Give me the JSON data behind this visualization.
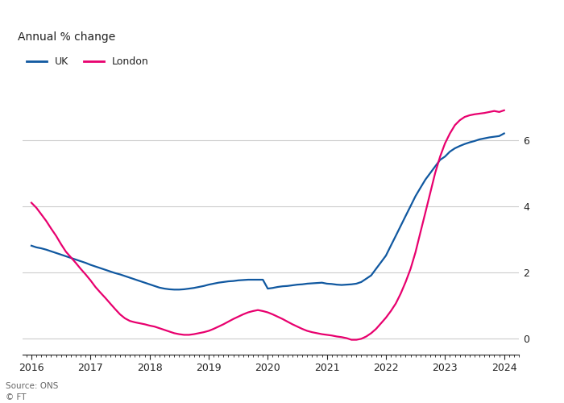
{
  "title": "Annual % change",
  "source_line1": "Source: ONS",
  "source_line2": "© FT",
  "uk_data": [
    [
      2016.0,
      2.8
    ],
    [
      2016.083,
      2.75
    ],
    [
      2016.167,
      2.72
    ],
    [
      2016.25,
      2.68
    ],
    [
      2016.333,
      2.63
    ],
    [
      2016.417,
      2.58
    ],
    [
      2016.5,
      2.53
    ],
    [
      2016.583,
      2.48
    ],
    [
      2016.667,
      2.43
    ],
    [
      2016.75,
      2.38
    ],
    [
      2016.833,
      2.33
    ],
    [
      2016.917,
      2.28
    ],
    [
      2017.0,
      2.22
    ],
    [
      2017.083,
      2.17
    ],
    [
      2017.167,
      2.12
    ],
    [
      2017.25,
      2.07
    ],
    [
      2017.333,
      2.02
    ],
    [
      2017.417,
      1.97
    ],
    [
      2017.5,
      1.93
    ],
    [
      2017.583,
      1.88
    ],
    [
      2017.667,
      1.83
    ],
    [
      2017.75,
      1.78
    ],
    [
      2017.833,
      1.73
    ],
    [
      2017.917,
      1.68
    ],
    [
      2018.0,
      1.63
    ],
    [
      2018.083,
      1.58
    ],
    [
      2018.167,
      1.53
    ],
    [
      2018.25,
      1.5
    ],
    [
      2018.333,
      1.48
    ],
    [
      2018.417,
      1.47
    ],
    [
      2018.5,
      1.47
    ],
    [
      2018.583,
      1.48
    ],
    [
      2018.667,
      1.5
    ],
    [
      2018.75,
      1.52
    ],
    [
      2018.833,
      1.55
    ],
    [
      2018.917,
      1.58
    ],
    [
      2019.0,
      1.62
    ],
    [
      2019.083,
      1.65
    ],
    [
      2019.167,
      1.68
    ],
    [
      2019.25,
      1.7
    ],
    [
      2019.333,
      1.72
    ],
    [
      2019.417,
      1.73
    ],
    [
      2019.5,
      1.75
    ],
    [
      2019.583,
      1.76
    ],
    [
      2019.667,
      1.77
    ],
    [
      2019.75,
      1.77
    ],
    [
      2019.833,
      1.77
    ],
    [
      2019.917,
      1.77
    ],
    [
      2020.0,
      1.5
    ],
    [
      2020.083,
      1.52
    ],
    [
      2020.167,
      1.55
    ],
    [
      2020.25,
      1.57
    ],
    [
      2020.333,
      1.58
    ],
    [
      2020.417,
      1.6
    ],
    [
      2020.5,
      1.62
    ],
    [
      2020.583,
      1.63
    ],
    [
      2020.667,
      1.65
    ],
    [
      2020.75,
      1.66
    ],
    [
      2020.833,
      1.67
    ],
    [
      2020.917,
      1.68
    ],
    [
      2021.0,
      1.65
    ],
    [
      2021.083,
      1.64
    ],
    [
      2021.167,
      1.62
    ],
    [
      2021.25,
      1.61
    ],
    [
      2021.333,
      1.62
    ],
    [
      2021.417,
      1.63
    ],
    [
      2021.5,
      1.65
    ],
    [
      2021.583,
      1.7
    ],
    [
      2021.667,
      1.8
    ],
    [
      2021.75,
      1.9
    ],
    [
      2021.833,
      2.1
    ],
    [
      2021.917,
      2.3
    ],
    [
      2022.0,
      2.5
    ],
    [
      2022.083,
      2.8
    ],
    [
      2022.167,
      3.1
    ],
    [
      2022.25,
      3.4
    ],
    [
      2022.333,
      3.7
    ],
    [
      2022.417,
      4.0
    ],
    [
      2022.5,
      4.3
    ],
    [
      2022.583,
      4.55
    ],
    [
      2022.667,
      4.8
    ],
    [
      2022.75,
      5.0
    ],
    [
      2022.833,
      5.2
    ],
    [
      2022.917,
      5.4
    ],
    [
      2023.0,
      5.5
    ],
    [
      2023.083,
      5.65
    ],
    [
      2023.167,
      5.75
    ],
    [
      2023.25,
      5.82
    ],
    [
      2023.333,
      5.88
    ],
    [
      2023.417,
      5.93
    ],
    [
      2023.5,
      5.97
    ],
    [
      2023.583,
      6.02
    ],
    [
      2023.667,
      6.05
    ],
    [
      2023.75,
      6.08
    ],
    [
      2023.833,
      6.1
    ],
    [
      2023.917,
      6.12
    ],
    [
      2024.0,
      6.2
    ]
  ],
  "london_data": [
    [
      2016.0,
      4.1
    ],
    [
      2016.083,
      3.95
    ],
    [
      2016.167,
      3.75
    ],
    [
      2016.25,
      3.55
    ],
    [
      2016.333,
      3.32
    ],
    [
      2016.417,
      3.1
    ],
    [
      2016.5,
      2.85
    ],
    [
      2016.583,
      2.62
    ],
    [
      2016.667,
      2.45
    ],
    [
      2016.75,
      2.28
    ],
    [
      2016.833,
      2.1
    ],
    [
      2016.917,
      1.93
    ],
    [
      2017.0,
      1.75
    ],
    [
      2017.083,
      1.55
    ],
    [
      2017.167,
      1.38
    ],
    [
      2017.25,
      1.22
    ],
    [
      2017.333,
      1.05
    ],
    [
      2017.417,
      0.88
    ],
    [
      2017.5,
      0.72
    ],
    [
      2017.583,
      0.6
    ],
    [
      2017.667,
      0.52
    ],
    [
      2017.75,
      0.48
    ],
    [
      2017.833,
      0.45
    ],
    [
      2017.917,
      0.42
    ],
    [
      2018.0,
      0.38
    ],
    [
      2018.083,
      0.35
    ],
    [
      2018.167,
      0.3
    ],
    [
      2018.25,
      0.25
    ],
    [
      2018.333,
      0.2
    ],
    [
      2018.417,
      0.15
    ],
    [
      2018.5,
      0.12
    ],
    [
      2018.583,
      0.1
    ],
    [
      2018.667,
      0.1
    ],
    [
      2018.75,
      0.12
    ],
    [
      2018.833,
      0.15
    ],
    [
      2018.917,
      0.18
    ],
    [
      2019.0,
      0.22
    ],
    [
      2019.083,
      0.28
    ],
    [
      2019.167,
      0.35
    ],
    [
      2019.25,
      0.42
    ],
    [
      2019.333,
      0.5
    ],
    [
      2019.417,
      0.58
    ],
    [
      2019.5,
      0.65
    ],
    [
      2019.583,
      0.72
    ],
    [
      2019.667,
      0.78
    ],
    [
      2019.75,
      0.82
    ],
    [
      2019.833,
      0.85
    ],
    [
      2019.917,
      0.82
    ],
    [
      2020.0,
      0.78
    ],
    [
      2020.083,
      0.72
    ],
    [
      2020.167,
      0.65
    ],
    [
      2020.25,
      0.58
    ],
    [
      2020.333,
      0.5
    ],
    [
      2020.417,
      0.42
    ],
    [
      2020.5,
      0.35
    ],
    [
      2020.583,
      0.28
    ],
    [
      2020.667,
      0.22
    ],
    [
      2020.75,
      0.18
    ],
    [
      2020.833,
      0.15
    ],
    [
      2020.917,
      0.12
    ],
    [
      2021.0,
      0.1
    ],
    [
      2021.083,
      0.08
    ],
    [
      2021.167,
      0.05
    ],
    [
      2021.25,
      0.03
    ],
    [
      2021.333,
      0.0
    ],
    [
      2021.417,
      -0.05
    ],
    [
      2021.5,
      -0.05
    ],
    [
      2021.583,
      -0.02
    ],
    [
      2021.667,
      0.05
    ],
    [
      2021.75,
      0.15
    ],
    [
      2021.833,
      0.28
    ],
    [
      2021.917,
      0.45
    ],
    [
      2022.0,
      0.62
    ],
    [
      2022.083,
      0.82
    ],
    [
      2022.167,
      1.05
    ],
    [
      2022.25,
      1.35
    ],
    [
      2022.333,
      1.7
    ],
    [
      2022.417,
      2.1
    ],
    [
      2022.5,
      2.6
    ],
    [
      2022.583,
      3.2
    ],
    [
      2022.667,
      3.8
    ],
    [
      2022.75,
      4.4
    ],
    [
      2022.833,
      5.0
    ],
    [
      2022.917,
      5.5
    ],
    [
      2023.0,
      5.9
    ],
    [
      2023.083,
      6.2
    ],
    [
      2023.167,
      6.45
    ],
    [
      2023.25,
      6.6
    ],
    [
      2023.333,
      6.7
    ],
    [
      2023.417,
      6.75
    ],
    [
      2023.5,
      6.78
    ],
    [
      2023.583,
      6.8
    ],
    [
      2023.667,
      6.82
    ],
    [
      2023.75,
      6.85
    ],
    [
      2023.833,
      6.88
    ],
    [
      2023.917,
      6.85
    ],
    [
      2024.0,
      6.9
    ]
  ],
  "uk_color": "#1058a0",
  "london_color": "#e8006e",
  "bg_color": "#ffffff",
  "plot_bg_color": "#ffffff",
  "grid_color": "#cccccc",
  "text_color": "#222222",
  "source_color": "#666666",
  "yticks": [
    0,
    2,
    4,
    6
  ],
  "xticks": [
    2016,
    2017,
    2018,
    2019,
    2020,
    2021,
    2022,
    2023,
    2024
  ],
  "ylim": [
    -0.5,
    7.8
  ],
  "xlim": [
    2015.85,
    2024.25
  ]
}
